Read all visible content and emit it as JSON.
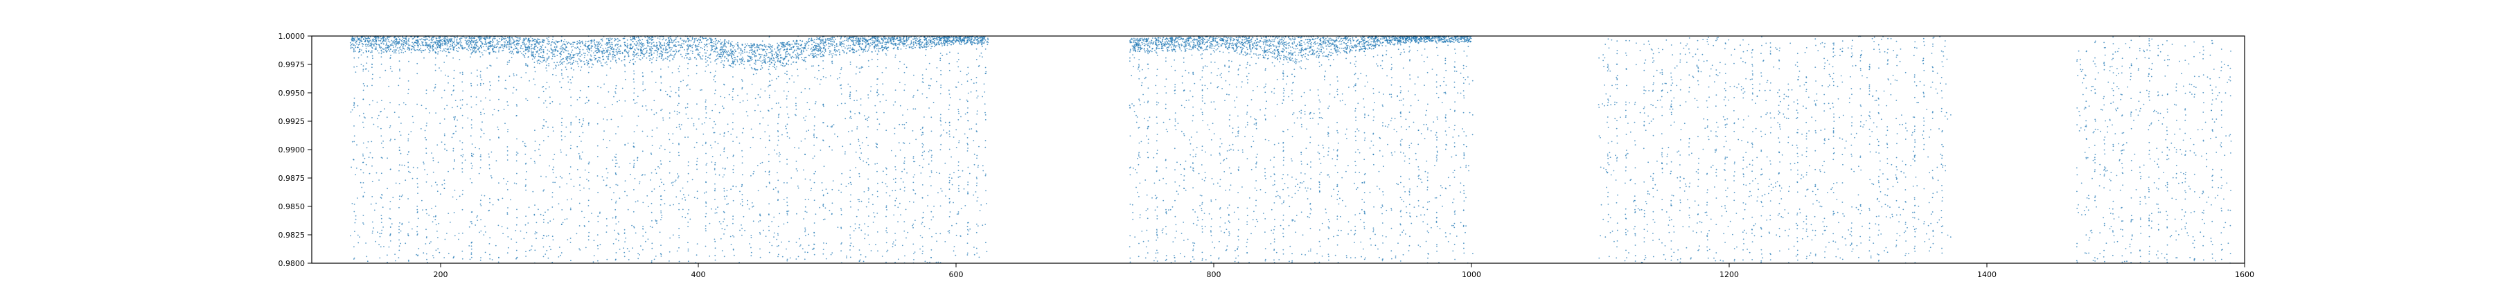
{
  "chart_data": {
    "type": "scatter",
    "title": "",
    "xlabel": "",
    "ylabel": "",
    "xlim": [
      100,
      1600
    ],
    "ylim": [
      0.98,
      1.0
    ],
    "x_ticks": [
      {
        "value": 200,
        "label": "200"
      },
      {
        "value": 400,
        "label": "400"
      },
      {
        "value": 600,
        "label": "600"
      },
      {
        "value": 800,
        "label": "800"
      },
      {
        "value": 1000,
        "label": "1000"
      },
      {
        "value": 1200,
        "label": "1200"
      },
      {
        "value": 1400,
        "label": "1400"
      },
      {
        "value": 1600,
        "label": "1600"
      }
    ],
    "y_ticks": [
      {
        "value": 0.98,
        "label": "0.9800"
      },
      {
        "value": 0.9825,
        "label": "0.9825"
      },
      {
        "value": 0.985,
        "label": "0.9850"
      },
      {
        "value": 0.9875,
        "label": "0.9875"
      },
      {
        "value": 0.99,
        "label": "0.9900"
      },
      {
        "value": 0.9925,
        "label": "0.9925"
      },
      {
        "value": 0.995,
        "label": "0.9950"
      },
      {
        "value": 0.9975,
        "label": "0.9975"
      },
      {
        "value": 1.0,
        "label": "1.0000"
      }
    ],
    "grid": false,
    "legend": "none",
    "series": [
      {
        "color": "#1f77b4",
        "segments": [
          {
            "x_range": [
              130,
              625
            ],
            "sparse_values": "scattered uniformly between 0.980 and 1.000",
            "dense_band": [
              {
                "x": 150,
                "y_range": [
                  0.9985,
                  1.0
                ]
              },
              {
                "x": 250,
                "y_range": [
                  0.9985,
                  1.0
                ]
              },
              {
                "x": 300,
                "y_range": [
                  0.9968,
                  0.9995
                ]
              },
              {
                "x": 350,
                "y_range": [
                  0.9978,
                  1.0
                ]
              },
              {
                "x": 400,
                "y_range": [
                  0.9978,
                  1.0
                ]
              },
              {
                "x": 450,
                "y_range": [
                  0.9968,
                  0.9992
                ]
              },
              {
                "x": 500,
                "y_range": [
                  0.9982,
                  1.0
                ]
              },
              {
                "x": 600,
                "y_range": [
                  0.9992,
                  1.0
                ]
              }
            ]
          },
          {
            "x_range": [
              735,
              1000
            ],
            "sparse_values": "scattered uniformly between 0.980 and 1.000",
            "dense_band": [
              {
                "x": 740,
                "y_range": [
                  0.9985,
                  0.9998
                ]
              },
              {
                "x": 800,
                "y_range": [
                  0.9987,
                  1.0
                ]
              },
              {
                "x": 860,
                "y_range": [
                  0.9975,
                  1.0
                ]
              },
              {
                "x": 950,
                "y_range": [
                  0.9994,
                  1.0
                ]
              }
            ]
          },
          {
            "x_range": [
              1100,
              1370
            ],
            "sparse_values": "scattered uniformly between 0.980 and 1.000",
            "dense_band": []
          },
          {
            "x_range": [
              1470,
              1590
            ],
            "sparse_values": "scattered uniformly between 0.980 and 1.000",
            "dense_band": []
          }
        ]
      }
    ]
  }
}
